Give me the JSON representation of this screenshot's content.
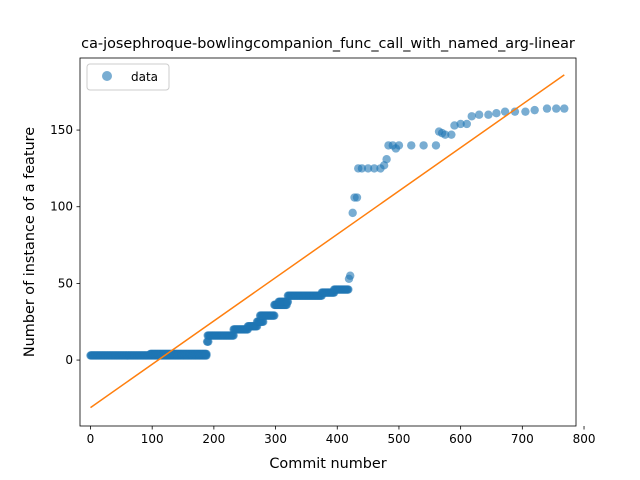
{
  "chart_data": {
    "type": "scatter",
    "title": "ca-josephroque-bowlingcompanion_func_call_with_named_arg-linear",
    "xlabel": "Commit number",
    "ylabel": "Number of instance of a feature",
    "xlim": [
      -17,
      787
    ],
    "ylim": [
      -43,
      197
    ],
    "xticks": [
      0,
      100,
      200,
      300,
      400,
      500,
      600,
      700,
      800
    ],
    "yticks": [
      0,
      50,
      100,
      150
    ],
    "legend": {
      "label": "data",
      "placement": "top-left"
    },
    "colors": {
      "data": "#1f77b4",
      "fit": "#ff7f0e"
    },
    "series": [
      {
        "name": "data",
        "kind": "scatter",
        "segments": [
          [
            0,
            188,
            3
          ],
          [
            97,
            188,
            4
          ],
          [
            189,
            191,
            12
          ],
          [
            190,
            232,
            16
          ],
          [
            232,
            255,
            20
          ],
          [
            255,
            270,
            22
          ],
          [
            270,
            280,
            25
          ],
          [
            275,
            298,
            29
          ],
          [
            298,
            318,
            36
          ],
          [
            305,
            320,
            38
          ],
          [
            320,
            375,
            42
          ],
          [
            375,
            395,
            44
          ],
          [
            395,
            418,
            46
          ]
        ],
        "points": [
          [
            419,
            53
          ],
          [
            421,
            55
          ],
          [
            425,
            96
          ],
          [
            428,
            106
          ],
          [
            432,
            106
          ],
          [
            434,
            125
          ],
          [
            440,
            125
          ],
          [
            450,
            125
          ],
          [
            460,
            125
          ],
          [
            470,
            125
          ],
          [
            476,
            127
          ],
          [
            480,
            131
          ],
          [
            483,
            140
          ],
          [
            490,
            140
          ],
          [
            495,
            138
          ],
          [
            500,
            140
          ],
          [
            520,
            140
          ],
          [
            540,
            140
          ],
          [
            560,
            140
          ],
          [
            565,
            149
          ],
          [
            570,
            148
          ],
          [
            575,
            147
          ],
          [
            585,
            147
          ],
          [
            590,
            153
          ],
          [
            600,
            154
          ],
          [
            610,
            154
          ],
          [
            618,
            159
          ],
          [
            630,
            160
          ],
          [
            645,
            160
          ],
          [
            658,
            161
          ],
          [
            672,
            162
          ],
          [
            688,
            162
          ],
          [
            705,
            162
          ],
          [
            720,
            163
          ],
          [
            740,
            164
          ],
          [
            755,
            164
          ],
          [
            768,
            164
          ]
        ]
      },
      {
        "name": "",
        "kind": "line",
        "x": [
          0,
          768
        ],
        "y": [
          -31,
          186
        ]
      }
    ]
  }
}
